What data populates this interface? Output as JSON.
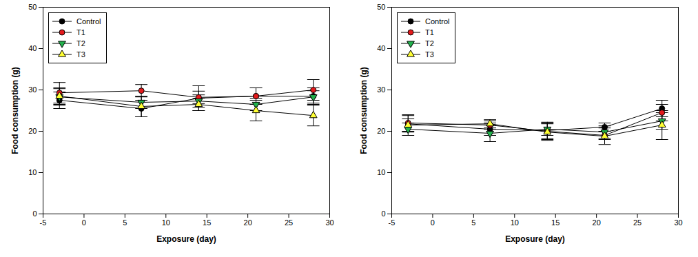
{
  "chart_data": [
    {
      "type": "line",
      "x_label": "Exposure (day)",
      "y_label": "Food consumption (g)",
      "x": [
        -3,
        7,
        14,
        21,
        28
      ],
      "xlim": [
        -5,
        30
      ],
      "xticks": [
        -5,
        0,
        5,
        10,
        15,
        20,
        25,
        30
      ],
      "ylim": [
        0,
        50
      ],
      "yticks": [
        0,
        10,
        20,
        30,
        40,
        50
      ],
      "legend": "top-left",
      "series": [
        {
          "name": "Control",
          "color": "#000000",
          "marker": "circle",
          "values": [
            27.5,
            25.5,
            28.0,
            28.5,
            28.5
          ],
          "error": [
            2.0,
            2.0,
            3.0,
            2.0,
            2.0
          ]
        },
        {
          "name": "T1",
          "color": "#e41a1c",
          "marker": "circle",
          "values": [
            29.3,
            29.8,
            28.2,
            28.5,
            30.0
          ],
          "error": [
            2.5,
            1.5,
            1.5,
            2.0,
            2.5
          ]
        },
        {
          "name": "T2",
          "color": "#22b14c",
          "marker": "triangle-down",
          "values": [
            28.3,
            27.0,
            27.3,
            26.5,
            28.3
          ],
          "error": [
            2.0,
            1.5,
            1.5,
            1.5,
            1.5
          ]
        },
        {
          "name": "T3",
          "color": "#ffff33",
          "marker": "triangle-up",
          "values": [
            28.5,
            26.0,
            26.5,
            25.0,
            23.8
          ],
          "error": [
            2.0,
            2.5,
            1.5,
            2.5,
            2.5
          ]
        }
      ]
    },
    {
      "type": "line",
      "x_label": "Exposure (day)",
      "y_label": "Food consumption (g)",
      "x": [
        -3,
        7,
        14,
        21,
        28
      ],
      "xlim": [
        -5,
        30
      ],
      "xticks": [
        -5,
        0,
        5,
        10,
        15,
        20,
        25,
        30
      ],
      "ylim": [
        0,
        50
      ],
      "yticks": [
        0,
        10,
        20,
        30,
        40,
        50
      ],
      "legend": "top-left",
      "series": [
        {
          "name": "Control",
          "color": "#000000",
          "marker": "circle",
          "values": [
            21.8,
            20.5,
            20.2,
            21.0,
            25.5
          ],
          "error": [
            2.0,
            1.5,
            2.0,
            1.0,
            2.0
          ]
        },
        {
          "name": "T1",
          "color": "#e41a1c",
          "marker": "circle",
          "values": [
            22.0,
            21.5,
            20.0,
            19.0,
            24.5
          ],
          "error": [
            2.0,
            1.0,
            2.0,
            1.0,
            2.0
          ]
        },
        {
          "name": "T2",
          "color": "#22b14c",
          "marker": "triangle-down",
          "values": [
            20.5,
            19.5,
            20.5,
            19.8,
            22.5
          ],
          "error": [
            1.5,
            2.0,
            1.5,
            1.5,
            2.0
          ]
        },
        {
          "name": "T3",
          "color": "#ffff33",
          "marker": "triangle-up",
          "values": [
            21.5,
            21.8,
            19.8,
            18.8,
            21.5
          ],
          "error": [
            1.5,
            1.0,
            2.0,
            2.0,
            3.5
          ]
        }
      ]
    }
  ]
}
